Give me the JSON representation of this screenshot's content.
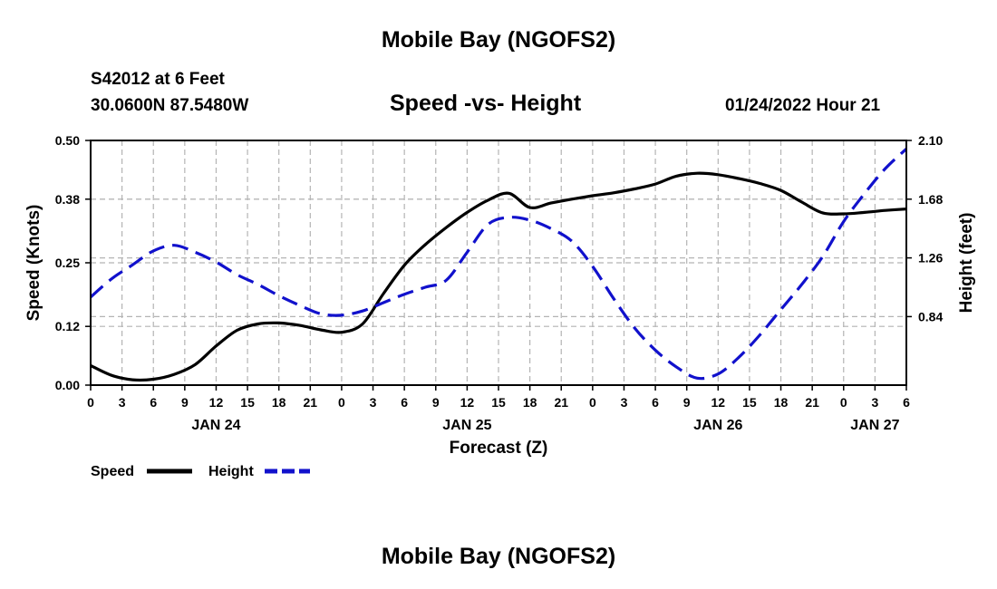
{
  "header": {
    "title": "Mobile Bay (NGOFS2)",
    "station": "S42012 at 6 Feet",
    "coords": "30.0600N  87.5480W",
    "plot_title": "Speed -vs- Height",
    "datetime": "01/24/2022 Hour 21"
  },
  "footer": {
    "title": "Mobile Bay (NGOFS2)"
  },
  "colors": {
    "speed": "#000000",
    "height": "#1111cc",
    "grid": "#b4b4b4"
  },
  "chart_data": {
    "type": "line",
    "title": "Speed -vs- Height",
    "xlabel": "Forecast (Z)",
    "ylabel": "Speed (Knots)",
    "y2label": "Height (feet)",
    "x_unit": "hours from Jan 24 00Z",
    "xlim": [
      0,
      78
    ],
    "ylim": [
      0.0,
      0.5
    ],
    "y2lim": [
      0.35,
      2.1
    ],
    "x_tick_labels": [
      "0",
      "3",
      "6",
      "9",
      "12",
      "15",
      "18",
      "21",
      "0",
      "3",
      "6",
      "9",
      "12",
      "15",
      "18",
      "21",
      "0",
      "3",
      "6",
      "9",
      "12",
      "15",
      "18",
      "21",
      "0",
      "3",
      "6"
    ],
    "date_labels": [
      {
        "label": "JAN 24",
        "hour": 12
      },
      {
        "label": "JAN 25",
        "hour": 36
      },
      {
        "label": "JAN 26",
        "hour": 60
      },
      {
        "label": "JAN 27",
        "hour": 75
      }
    ],
    "y_ticks": [
      0.0,
      0.12,
      0.25,
      0.38,
      0.5
    ],
    "y_tick_labels": [
      "0.00",
      "0.12",
      "0.25",
      "0.38",
      "0.50"
    ],
    "y2_ticks": [
      0.84,
      1.26,
      1.68,
      2.1
    ],
    "y2_tick_labels": [
      "0.84",
      "1.26",
      "1.68",
      "2.10"
    ],
    "grid": true,
    "legend_position": "bottom-left",
    "series": [
      {
        "name": "Speed",
        "axis": "left",
        "style": "solid",
        "x": [
          0,
          2,
          4,
          6,
          8,
          10,
          12,
          14,
          16,
          18,
          20,
          22,
          24,
          26,
          28,
          30,
          32,
          34,
          36,
          38,
          40,
          42,
          44,
          46,
          48,
          50,
          52,
          54,
          56,
          58,
          60,
          62,
          64,
          66,
          68,
          70,
          72,
          74,
          76,
          78
        ],
        "y": [
          0.04,
          0.02,
          0.011,
          0.012,
          0.022,
          0.042,
          0.08,
          0.112,
          0.125,
          0.127,
          0.122,
          0.113,
          0.108,
          0.125,
          0.187,
          0.245,
          0.287,
          0.322,
          0.353,
          0.378,
          0.392,
          0.363,
          0.372,
          0.38,
          0.387,
          0.393,
          0.401,
          0.411,
          0.427,
          0.433,
          0.43,
          0.422,
          0.412,
          0.398,
          0.374,
          0.352,
          0.35,
          0.353,
          0.357,
          0.36
        ]
      },
      {
        "name": "Height",
        "axis": "right",
        "style": "dashed",
        "x": [
          0,
          2,
          4,
          6,
          8,
          10,
          12,
          14,
          16,
          18,
          20,
          22,
          24,
          26,
          28,
          30,
          32,
          34,
          36,
          38,
          40,
          42,
          44,
          46,
          48,
          50,
          52,
          54,
          56,
          58,
          60,
          62,
          64,
          66,
          68,
          70,
          72,
          74,
          76,
          78
        ],
        "y": [
          0.98,
          1.11,
          1.21,
          1.31,
          1.35,
          1.3,
          1.23,
          1.14,
          1.07,
          0.99,
          0.92,
          0.86,
          0.85,
          0.88,
          0.94,
          1.0,
          1.05,
          1.1,
          1.3,
          1.5,
          1.55,
          1.53,
          1.47,
          1.38,
          1.2,
          0.97,
          0.76,
          0.6,
          0.48,
          0.4,
          0.43,
          0.55,
          0.71,
          0.89,
          1.07,
          1.27,
          1.52,
          1.72,
          1.9,
          2.04
        ]
      }
    ]
  }
}
